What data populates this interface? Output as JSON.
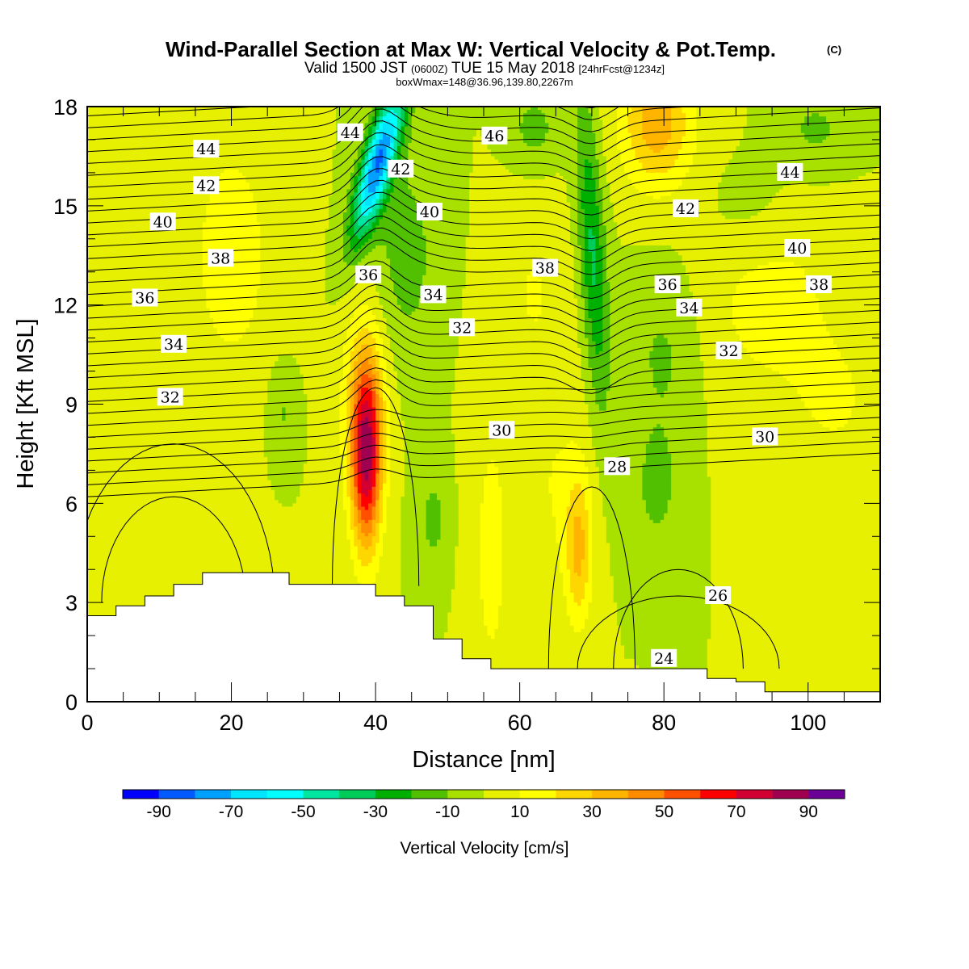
{
  "title": "Wind-Parallel Section at Max W: Vertical Velocity & Pot.Temp.",
  "copyright": "(C)",
  "subtitle": {
    "a": "Valid 1500 JST",
    "b": "(0600Z)",
    "c": "TUE 15 May 2018",
    "d": "[24hrFcst@1234z]"
  },
  "info": "boxWmax=148@36.96,139.80,2267m",
  "chart_data": {
    "type": "heatmap",
    "xlabel": "Distance [nm]",
    "ylabel": "Height [Kft MSL]",
    "xlim": [
      0,
      110
    ],
    "ylim": [
      0,
      18
    ],
    "x_ticks": [
      "0",
      "20",
      "40",
      "60",
      "80",
      "100"
    ],
    "y_ticks": [
      "0",
      "3",
      "6",
      "9",
      "12",
      "15",
      "18"
    ],
    "colorbar": {
      "label": "Vertical Velocity [cm/s]",
      "tick_labels": [
        "-90",
        "-70",
        "-50",
        "-30",
        "-10",
        "10",
        "30",
        "50",
        "70",
        "90"
      ],
      "bin_edges": [
        -100,
        -90,
        -80,
        -70,
        -60,
        -50,
        -40,
        -30,
        -20,
        -10,
        0,
        10,
        20,
        30,
        40,
        50,
        60,
        70,
        80,
        90,
        100
      ],
      "colors": [
        "#0000ff",
        "#005aff",
        "#00a0ff",
        "#00e6ff",
        "#00ffff",
        "#00e6a0",
        "#00cc5a",
        "#00b000",
        "#50c000",
        "#a8e000",
        "#e6f000",
        "#ffff00",
        "#ffd700",
        "#ffb400",
        "#ff8c00",
        "#ff5000",
        "#ff0000",
        "#d20032",
        "#a00050",
        "#6a0096"
      ]
    },
    "fields": {
      "background_w": 0,
      "updraft_cores": [
        {
          "x": 38.5,
          "y": 7.5,
          "peak_w": 95
        },
        {
          "x": 68.0,
          "y": 4.5,
          "peak_w": 35
        },
        {
          "x": 78.0,
          "y": 17.0,
          "peak_w": 40
        }
      ],
      "downdraft_cores": [
        {
          "x": 40.0,
          "y": 16.5,
          "peak_w": -75
        },
        {
          "x": 69.0,
          "y": 13.0,
          "peak_w": -30
        }
      ]
    },
    "theta_contour_labels": [
      {
        "text": "44",
        "x": 16.5,
        "y": 16.7
      },
      {
        "text": "44",
        "x": 36.5,
        "y": 17.2
      },
      {
        "text": "46",
        "x": 56.5,
        "y": 17.1
      },
      {
        "text": "42",
        "x": 16.5,
        "y": 15.6
      },
      {
        "text": "42",
        "x": 43.5,
        "y": 16.1
      },
      {
        "text": "44",
        "x": 97.5,
        "y": 16.0
      },
      {
        "text": "40",
        "x": 10.5,
        "y": 14.5
      },
      {
        "text": "40",
        "x": 47.5,
        "y": 14.8
      },
      {
        "text": "42",
        "x": 83.0,
        "y": 14.9
      },
      {
        "text": "38",
        "x": 18.5,
        "y": 13.4
      },
      {
        "text": "38",
        "x": 63.5,
        "y": 13.1
      },
      {
        "text": "40",
        "x": 98.5,
        "y": 13.7
      },
      {
        "text": "36",
        "x": 39.0,
        "y": 12.9
      },
      {
        "text": "36",
        "x": 80.5,
        "y": 12.6
      },
      {
        "text": "38",
        "x": 101.5,
        "y": 12.6
      },
      {
        "text": "36",
        "x": 8.0,
        "y": 12.2
      },
      {
        "text": "34",
        "x": 48.0,
        "y": 12.3
      },
      {
        "text": "34",
        "x": 83.5,
        "y": 11.9
      },
      {
        "text": "34",
        "x": 12.0,
        "y": 10.8
      },
      {
        "text": "32",
        "x": 52.0,
        "y": 11.3
      },
      {
        "text": "32",
        "x": 89.0,
        "y": 10.6
      },
      {
        "text": "32",
        "x": 11.5,
        "y": 9.2
      },
      {
        "text": "30",
        "x": 57.5,
        "y": 8.2
      },
      {
        "text": "30",
        "x": 94.0,
        "y": 8.0
      },
      {
        "text": "28",
        "x": 73.5,
        "y": 7.1
      },
      {
        "text": "26",
        "x": 87.5,
        "y": 3.2
      },
      {
        "text": "24",
        "x": 80.0,
        "y": 1.3
      }
    ]
  }
}
